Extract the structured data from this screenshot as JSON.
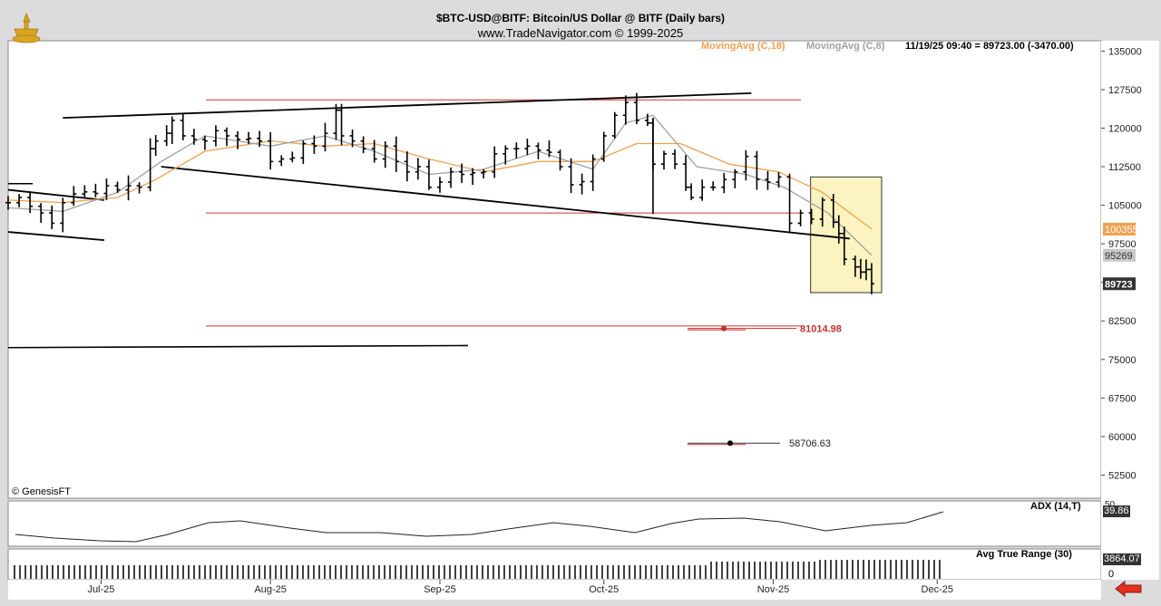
{
  "header": {
    "title": "$BTC-USD@BITF:  Bitcoin/US Dollar @ BITF  (Daily bars)",
    "copyright": "www.TradeNavigator.com © 1999-2025"
  },
  "legend": {
    "ma18": "MovingAvg (C,18)",
    "ma8": "MovingAvg (C,8)",
    "last": "11/19/25 09:40 = 89723.00 (-3470.00)"
  },
  "credit": "© GenesisFT",
  "colors": {
    "ma18": "#f0a050",
    "ma8": "#a0a0a0",
    "support_line": "#d03030",
    "highlight_fill": "#fbf3c0",
    "marker_ma18": "#f0a050",
    "marker_ma8": "#c8c8c8",
    "marker_last": "#333333"
  },
  "panes": {
    "adx": {
      "label": "ADX (14,T)",
      "value": "39.86"
    },
    "atr": {
      "label": "Avg True Range (30)",
      "value": "3864.07",
      "zero": "0"
    }
  },
  "chart_data": {
    "type": "ohlc",
    "title": "$BTC-USD@BITF:  Bitcoin/US Dollar @ BITF  (Daily bars)",
    "x_labels": [
      "Jul-25",
      "Aug-25",
      "Sep-25",
      "Oct-25",
      "Nov-25",
      "Dec-25"
    ],
    "x_range": [
      "2025-06-14",
      "2025-12-31"
    ],
    "ylim": [
      48000,
      137000
    ],
    "y_ticks": [
      135000,
      127500,
      120000,
      112500,
      105000,
      97500,
      90000,
      82500,
      75000,
      67500,
      60000,
      52500
    ],
    "y_tick_labels": [
      "135000",
      "127500",
      "120000",
      "112500",
      "105000",
      "97500",
      "90000",
      "82500",
      "75000",
      "67500",
      "60000",
      "52500"
    ],
    "last_price": 89723,
    "price_markers": [
      {
        "label": "100355",
        "value": 100355,
        "role": "ma18"
      },
      {
        "label": "95269",
        "value": 95269,
        "role": "ma8"
      },
      {
        "label": "89723",
        "value": 89723,
        "role": "last"
      }
    ],
    "closes": [
      {
        "date": "2025-06-14",
        "close": 105500
      },
      {
        "date": "2025-06-16",
        "close": 106500
      },
      {
        "date": "2025-06-18",
        "close": 104800
      },
      {
        "date": "2025-06-20",
        "close": 103500
      },
      {
        "date": "2025-06-22",
        "close": 101500
      },
      {
        "date": "2025-06-24",
        "close": 105500
      },
      {
        "date": "2025-06-26",
        "close": 107200
      },
      {
        "date": "2025-06-28",
        "close": 107600
      },
      {
        "date": "2025-06-30",
        "close": 107300
      },
      {
        "date": "2025-07-02",
        "close": 108800
      },
      {
        "date": "2025-07-04",
        "close": 108000
      },
      {
        "date": "2025-07-06",
        "close": 108800
      },
      {
        "date": "2025-07-08",
        "close": 108500
      },
      {
        "date": "2025-07-10",
        "close": 116000
      },
      {
        "date": "2025-07-11",
        "close": 117500
      },
      {
        "date": "2025-07-13",
        "close": 119000
      },
      {
        "date": "2025-07-14",
        "close": 121500
      },
      {
        "date": "2025-07-16",
        "close": 118500
      },
      {
        "date": "2025-07-18",
        "close": 117800
      },
      {
        "date": "2025-07-20",
        "close": 117500
      },
      {
        "date": "2025-07-22",
        "close": 119500
      },
      {
        "date": "2025-07-24",
        "close": 118500
      },
      {
        "date": "2025-07-26",
        "close": 117800
      },
      {
        "date": "2025-07-28",
        "close": 118000
      },
      {
        "date": "2025-07-30",
        "close": 117500
      },
      {
        "date": "2025-08-01",
        "close": 113500
      },
      {
        "date": "2025-08-03",
        "close": 114000
      },
      {
        "date": "2025-08-05",
        "close": 114200
      },
      {
        "date": "2025-08-07",
        "close": 117000
      },
      {
        "date": "2025-08-09",
        "close": 116500
      },
      {
        "date": "2025-08-11",
        "close": 119000
      },
      {
        "date": "2025-08-13",
        "close": 123500
      },
      {
        "date": "2025-08-14",
        "close": 118500
      },
      {
        "date": "2025-08-16",
        "close": 117500
      },
      {
        "date": "2025-08-18",
        "close": 116000
      },
      {
        "date": "2025-08-20",
        "close": 114000
      },
      {
        "date": "2025-08-22",
        "close": 116500
      },
      {
        "date": "2025-08-24",
        "close": 113500
      },
      {
        "date": "2025-08-26",
        "close": 111500
      },
      {
        "date": "2025-08-28",
        "close": 112500
      },
      {
        "date": "2025-08-30",
        "close": 108500
      },
      {
        "date": "2025-09-01",
        "close": 109500
      },
      {
        "date": "2025-09-03",
        "close": 111500
      },
      {
        "date": "2025-09-05",
        "close": 111000
      },
      {
        "date": "2025-09-07",
        "close": 111300
      },
      {
        "date": "2025-09-09",
        "close": 111500
      },
      {
        "date": "2025-09-11",
        "close": 115000
      },
      {
        "date": "2025-09-13",
        "close": 116000
      },
      {
        "date": "2025-09-15",
        "close": 116000
      },
      {
        "date": "2025-09-17",
        "close": 116500
      },
      {
        "date": "2025-09-19",
        "close": 115700
      },
      {
        "date": "2025-09-21",
        "close": 115300
      },
      {
        "date": "2025-09-23",
        "close": 112500
      },
      {
        "date": "2025-09-25",
        "close": 109000
      },
      {
        "date": "2025-09-27",
        "close": 109600
      },
      {
        "date": "2025-09-29",
        "close": 114000
      },
      {
        "date": "2025-10-01",
        "close": 118500
      },
      {
        "date": "2025-10-03",
        "close": 122500
      },
      {
        "date": "2025-10-05",
        "close": 125000
      },
      {
        "date": "2025-10-07",
        "close": 121500
      },
      {
        "date": "2025-10-09",
        "close": 121000
      },
      {
        "date": "2025-10-10",
        "close": 113000
      },
      {
        "date": "2025-10-12",
        "close": 115000
      },
      {
        "date": "2025-10-14",
        "close": 113000
      },
      {
        "date": "2025-10-16",
        "close": 108500
      },
      {
        "date": "2025-10-17",
        "close": 106500
      },
      {
        "date": "2025-10-19",
        "close": 108500
      },
      {
        "date": "2025-10-21",
        "close": 108500
      },
      {
        "date": "2025-10-23",
        "close": 110000
      },
      {
        "date": "2025-10-25",
        "close": 111500
      },
      {
        "date": "2025-10-27",
        "close": 114500
      },
      {
        "date": "2025-10-29",
        "close": 110000
      },
      {
        "date": "2025-10-31",
        "close": 109500
      },
      {
        "date": "2025-11-02",
        "close": 110500
      },
      {
        "date": "2025-11-04",
        "close": 101500
      },
      {
        "date": "2025-11-06",
        "close": 103500
      },
      {
        "date": "2025-11-08",
        "close": 102300
      },
      {
        "date": "2025-11-10",
        "close": 106000
      },
      {
        "date": "2025-11-12",
        "close": 101700
      },
      {
        "date": "2025-11-13",
        "close": 99500
      },
      {
        "date": "2025-11-14",
        "close": 94500
      },
      {
        "date": "2025-11-16",
        "close": 93000
      },
      {
        "date": "2025-11-17",
        "close": 92000
      },
      {
        "date": "2025-11-18",
        "close": 92500
      },
      {
        "date": "2025-11-19",
        "close": 89723
      }
    ],
    "series": [
      {
        "name": "MovingAvg (C,18)",
        "color": "#f0a050",
        "values": [
          {
            "date": "2025-06-14",
            "close": 106000
          },
          {
            "date": "2025-06-24",
            "close": 105500
          },
          {
            "date": "2025-07-04",
            "close": 106500
          },
          {
            "date": "2025-07-11",
            "close": 110000
          },
          {
            "date": "2025-07-20",
            "close": 115500
          },
          {
            "date": "2025-08-01",
            "close": 117500
          },
          {
            "date": "2025-08-11",
            "close": 116500
          },
          {
            "date": "2025-08-20",
            "close": 117000
          },
          {
            "date": "2025-08-30",
            "close": 114000
          },
          {
            "date": "2025-09-09",
            "close": 111500
          },
          {
            "date": "2025-09-19",
            "close": 113500
          },
          {
            "date": "2025-09-29",
            "close": 113500
          },
          {
            "date": "2025-10-07",
            "close": 117000
          },
          {
            "date": "2025-10-15",
            "close": 117000
          },
          {
            "date": "2025-10-24",
            "close": 113000
          },
          {
            "date": "2025-11-02",
            "close": 111500
          },
          {
            "date": "2025-11-10",
            "close": 107500
          },
          {
            "date": "2025-11-19",
            "close": 100355
          }
        ]
      },
      {
        "name": "MovingAvg (C,8)",
        "color": "#a0a0a0",
        "values": [
          {
            "date": "2025-06-14",
            "close": 104500
          },
          {
            "date": "2025-06-24",
            "close": 103800
          },
          {
            "date": "2025-07-04",
            "close": 107500
          },
          {
            "date": "2025-07-12",
            "close": 113500
          },
          {
            "date": "2025-07-20",
            "close": 118500
          },
          {
            "date": "2025-08-01",
            "close": 116500
          },
          {
            "date": "2025-08-11",
            "close": 118500
          },
          {
            "date": "2025-08-20",
            "close": 115500
          },
          {
            "date": "2025-08-30",
            "close": 111000
          },
          {
            "date": "2025-09-09",
            "close": 112000
          },
          {
            "date": "2025-09-19",
            "close": 115500
          },
          {
            "date": "2025-09-29",
            "close": 112000
          },
          {
            "date": "2025-10-05",
            "close": 121000
          },
          {
            "date": "2025-10-10",
            "close": 122500
          },
          {
            "date": "2025-10-18",
            "close": 112500
          },
          {
            "date": "2025-10-27",
            "close": 111000
          },
          {
            "date": "2025-11-03",
            "close": 108500
          },
          {
            "date": "2025-11-11",
            "close": 103500
          },
          {
            "date": "2025-11-19",
            "close": 95269
          }
        ]
      }
    ],
    "trendlines": [
      {
        "from": {
          "date": "2025-06-24",
          "price": 122000
        },
        "to": {
          "date": "2025-10-28",
          "price": 126800
        }
      },
      {
        "from": {
          "date": "2025-07-12",
          "price": 112500
        },
        "to": {
          "date": "2025-11-15",
          "price": 98500
        }
      }
    ],
    "horizontal_lines": [
      {
        "price": 125500,
        "role": "resistance"
      },
      {
        "price": 103500,
        "role": "support"
      },
      {
        "price": 81500,
        "role": "support"
      }
    ],
    "targets": [
      {
        "label": "81014.98",
        "value": 81014.98
      },
      {
        "label": "58706.63",
        "value": 58706.63
      }
    ],
    "highlight_box": {
      "from": "2025-11-08",
      "to": "2025-11-20",
      "y_top": 110500,
      "y_bottom": 88000
    },
    "adx": {
      "name": "ADX (14,T)",
      "last": 39.86,
      "scale_label": "50"
    },
    "atr": {
      "name": "Avg True Range (30)",
      "last": 3864.07
    }
  }
}
